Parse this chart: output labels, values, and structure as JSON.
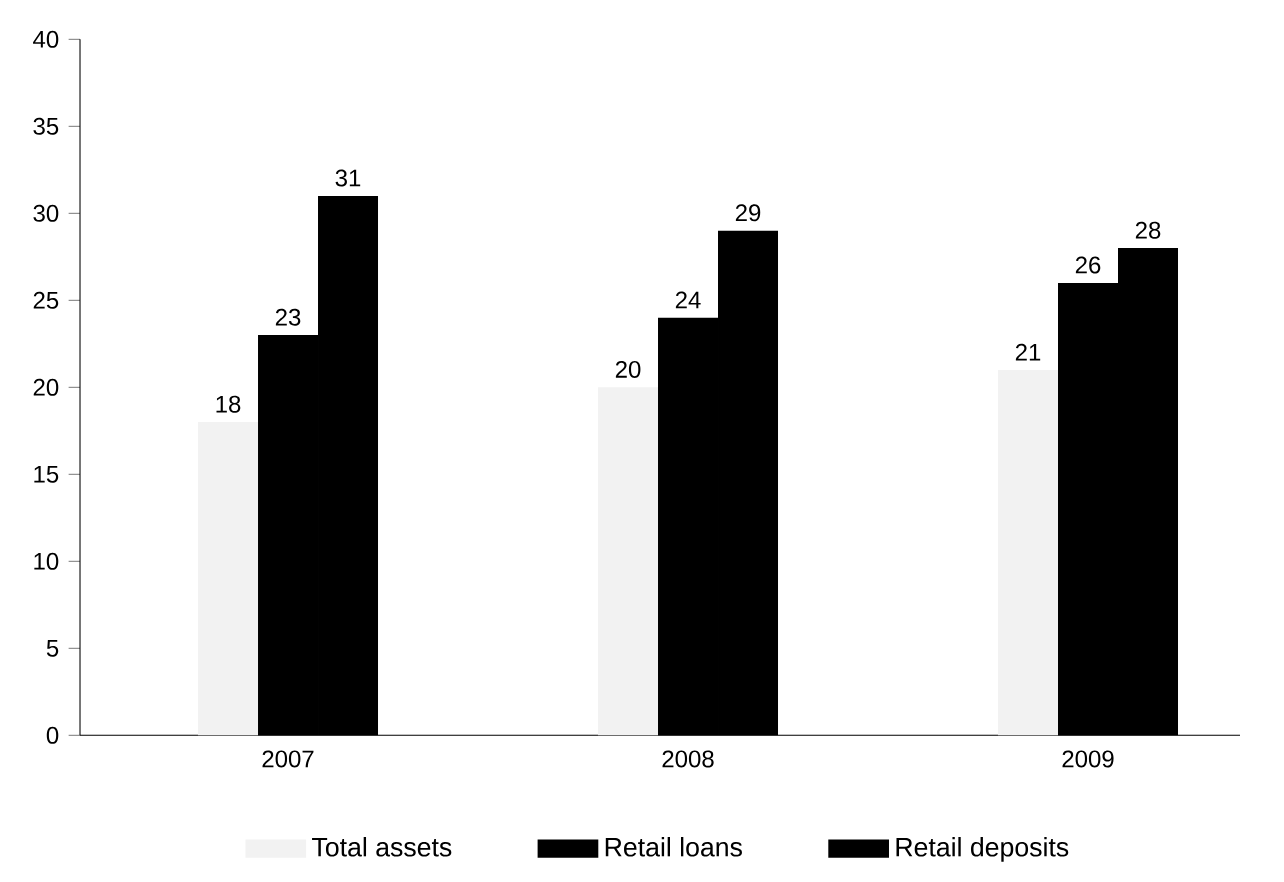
{
  "chart_data": {
    "type": "bar",
    "categories": [
      "2007",
      "2008",
      "2009"
    ],
    "series": [
      {
        "name": "Total assets",
        "color": "#f2f2f2",
        "values": [
          18,
          20,
          21
        ]
      },
      {
        "name": "Retail loans",
        "color": "#000000",
        "values": [
          23,
          24,
          26
        ]
      },
      {
        "name": "Retail deposits",
        "color": "#000000",
        "values": [
          31,
          29,
          28
        ]
      }
    ],
    "ylim": [
      0,
      40
    ],
    "yticks": [
      0,
      5,
      10,
      15,
      20,
      25,
      30,
      35,
      40
    ],
    "data_labels": true,
    "legend": "bottom"
  }
}
